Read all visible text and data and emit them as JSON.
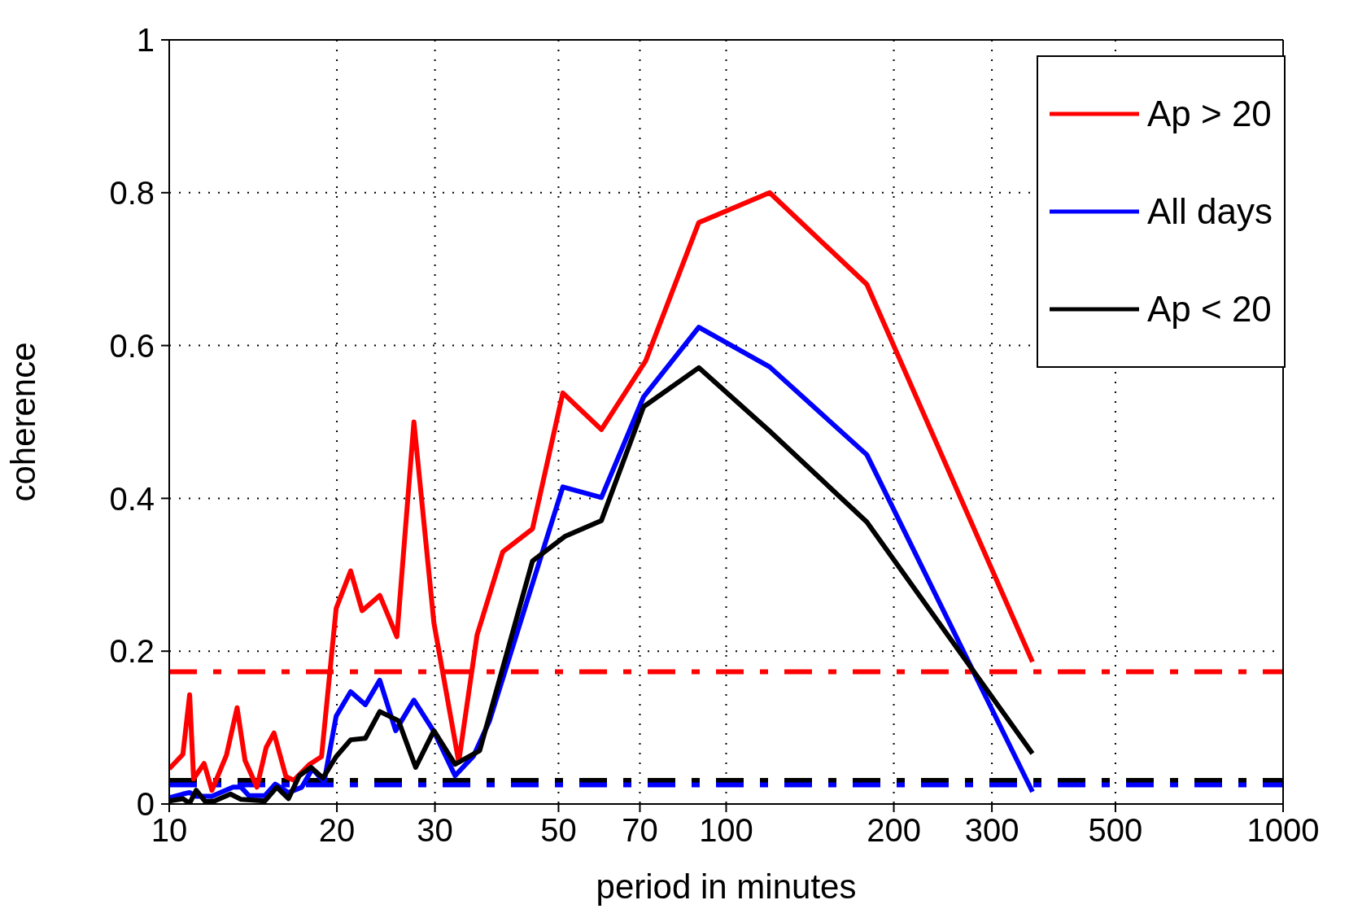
{
  "chart_data": {
    "type": "line",
    "xlabel": "period in minutes",
    "ylabel": "coherence",
    "log": "x",
    "grid": true,
    "legend": "top right",
    "marker": "none",
    "line_style": "solid",
    "xlim": [
      10,
      1000
    ],
    "xticks": [
      10,
      20,
      30,
      50,
      70,
      100,
      200,
      300,
      500,
      1000
    ],
    "ylim": [
      0,
      1
    ],
    "yticks": [
      0,
      0.2,
      0.4,
      0.6,
      0.8,
      1
    ],
    "series": [
      {
        "name": "Ap > 20",
        "color": "#ff0000",
        "x": [
          10,
          10.58,
          10.88,
          11.06,
          11.55,
          11.93,
          12.67,
          13.24,
          13.68,
          14.37,
          14.93,
          15.42,
          16.2,
          16.74,
          17.87,
          18.77,
          19.94,
          21.17,
          22.2,
          23.88,
          25.63,
          27.5,
          29.87,
          33.1,
          35.7,
          39.7,
          44.9,
          50.9,
          59.7,
          71.7,
          89.3,
          119.7,
          178.9,
          354.8
        ],
        "values": [
          0.046,
          0.065,
          0.143,
          0.033,
          0.053,
          0.018,
          0.064,
          0.126,
          0.057,
          0.022,
          0.074,
          0.093,
          0.036,
          0.031,
          0.052,
          0.062,
          0.256,
          0.305,
          0.253,
          0.273,
          0.219,
          0.5,
          0.237,
          0.055,
          0.221,
          0.33,
          0.36,
          0.538,
          0.49,
          0.58,
          0.761,
          0.8,
          0.68,
          0.186
        ]
      },
      {
        "name": "All days",
        "color": "#0000ff",
        "x": [
          10,
          10.58,
          10.88,
          11.18,
          11.93,
          13.02,
          13.46,
          13.9,
          14.85,
          15.5,
          16.37,
          17.3,
          18.07,
          18.97,
          19.94,
          21.17,
          22.5,
          23.88,
          25.5,
          27.5,
          29.87,
          32.6,
          35.2,
          37.6,
          50.9,
          59.7,
          71.1,
          89.3,
          119.7,
          178.9,
          354.8
        ],
        "values": [
          0.008,
          0.013,
          0.015,
          0.01,
          0.01,
          0.022,
          0.022,
          0.011,
          0.011,
          0.026,
          0.015,
          0.022,
          0.046,
          0.029,
          0.115,
          0.147,
          0.13,
          0.162,
          0.096,
          0.136,
          0.095,
          0.037,
          0.063,
          0.109,
          0.415,
          0.401,
          0.533,
          0.624,
          0.572,
          0.457,
          0.016
        ]
      },
      {
        "name": "Ap < 20",
        "color": "#000000",
        "x": [
          10,
          10.58,
          10.88,
          11.18,
          11.61,
          12.06,
          12.88,
          13.46,
          14.85,
          15.6,
          16.37,
          17.12,
          17.97,
          18.88,
          19.94,
          21.17,
          22.5,
          23.88,
          25.8,
          27.7,
          29.87,
          32.6,
          36.1,
          44.9,
          51.3,
          59.7,
          71.1,
          89.3,
          119.7,
          178.9,
          354.8
        ],
        "values": [
          0.004,
          0.007,
          0.001,
          0.018,
          0.003,
          0.004,
          0.013,
          0.006,
          0.004,
          0.022,
          0.007,
          0.037,
          0.048,
          0.034,
          0.062,
          0.084,
          0.086,
          0.121,
          0.109,
          0.048,
          0.096,
          0.052,
          0.07,
          0.318,
          0.35,
          0.371,
          0.52,
          0.571,
          0.488,
          0.369,
          0.066
        ]
      }
    ],
    "ref_lines": [
      {
        "axis": "y",
        "value": 0.173,
        "color": "#ff0000",
        "line_style": "dashdot"
      },
      {
        "axis": "y",
        "value": 0.031,
        "color": "#000000",
        "line_style": "dashdot"
      },
      {
        "axis": "y",
        "value": 0.025,
        "color": "#0000ff",
        "line_style": "dashdot"
      }
    ]
  }
}
